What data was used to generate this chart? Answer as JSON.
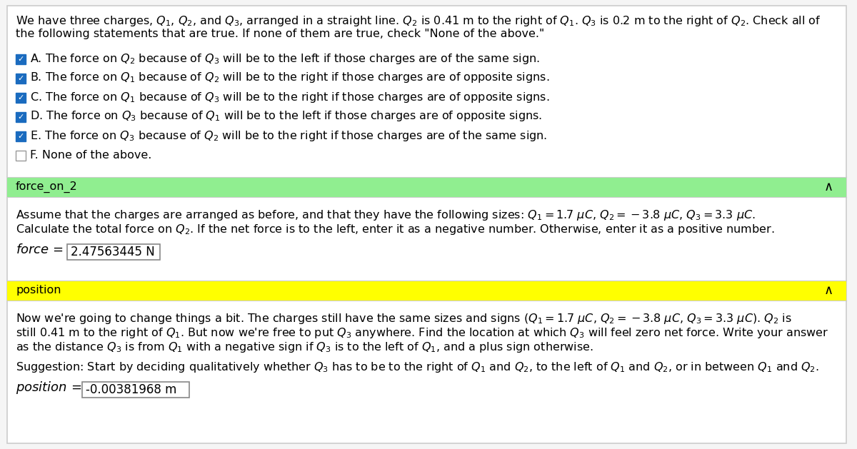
{
  "bg_color": "#f5f5f5",
  "panel_bg": "#ffffff",
  "border_color": "#cccccc",
  "checkboxes": [
    {
      "label": "A. The force on $Q_2$ because of $Q_3$ will be to the left if those charges are of the same sign.",
      "checked": true
    },
    {
      "label": "B. The force on $Q_1$ because of $Q_2$ will be to the right if those charges are of opposite signs.",
      "checked": true
    },
    {
      "label": "C. The force on $Q_1$ because of $Q_3$ will be to the right if those charges are of opposite signs.",
      "checked": true
    },
    {
      "label": "D. The force on $Q_3$ because of $Q_1$ will be to the left if those charges are of opposite signs.",
      "checked": true
    },
    {
      "label": "E. The force on $Q_3$ because of $Q_2$ will be to the right if those charges are of the same sign.",
      "checked": true
    },
    {
      "label": "F. None of the above.",
      "checked": false
    }
  ],
  "section1_label": "force_on_2",
  "section1_bg": "#90EE90",
  "force_value": "2.47563445 N",
  "section2_label": "position",
  "section2_bg": "#FFFF00",
  "position_value": "-0.00381968 m",
  "checkbox_checked_color": "#1a6bbf",
  "font_size_main": 11.5,
  "font_size_section": 11.5,
  "font_size_answer": 12
}
